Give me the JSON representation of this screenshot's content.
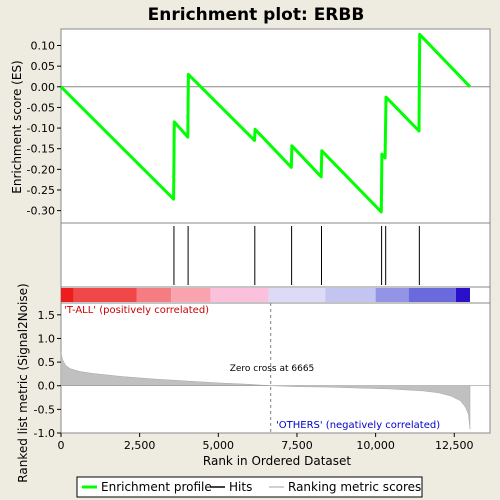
{
  "chart_data": {
    "type": "line",
    "title": "Enrichment plot: ERBB",
    "x_label": "Rank in Ordered Dataset",
    "es_label": "Enrichment score (ES)",
    "metric_label": "Ranked list metric (Signal2Noise)",
    "x_range": [
      0,
      13000
    ],
    "x_ticks": [
      0,
      2500,
      5000,
      7500,
      10000,
      12500
    ],
    "x_tick_labels": [
      "0",
      "2,500",
      "5,000",
      "7,500",
      "10,000",
      "12,500"
    ],
    "es_range": [
      -0.33,
      0.14
    ],
    "es_ticks": [
      0.1,
      0.05,
      0.0,
      -0.05,
      -0.1,
      -0.15,
      -0.2,
      -0.25,
      -0.3
    ],
    "es_tick_labels": [
      "0.10",
      "0.05",
      "0.00",
      "-0.05",
      "-0.10",
      "-0.15",
      "-0.20",
      "-0.25",
      "-0.30"
    ],
    "metric_range": [
      -1.0,
      1.75
    ],
    "metric_ticks": [
      1.5,
      1.0,
      0.5,
      0.0,
      -0.5,
      -1.0
    ],
    "metric_tick_labels": [
      "1.5",
      "1.0",
      "0.5",
      "0.0",
      "-0.5",
      "-1.0"
    ],
    "enrichment_profile": [
      [
        0,
        0.0
      ],
      [
        3580,
        -0.272
      ],
      [
        3600,
        -0.085
      ],
      [
        4030,
        -0.122
      ],
      [
        4050,
        0.03
      ],
      [
        6150,
        -0.13
      ],
      [
        6170,
        -0.103
      ],
      [
        7320,
        -0.195
      ],
      [
        7340,
        -0.143
      ],
      [
        8270,
        -0.218
      ],
      [
        8290,
        -0.155
      ],
      [
        10180,
        -0.303
      ],
      [
        10200,
        -0.163
      ],
      [
        10300,
        -0.172
      ],
      [
        10330,
        -0.025
      ],
      [
        11380,
        -0.107
      ],
      [
        11400,
        0.127
      ],
      [
        13000,
        0.0
      ]
    ],
    "hits": [
      3590,
      4040,
      6160,
      7330,
      8280,
      10190,
      10320,
      11390
    ],
    "heat_segments": [
      {
        "from": 0,
        "to": 400,
        "color": "#ee1c1c"
      },
      {
        "from": 400,
        "to": 2400,
        "color": "#f04848"
      },
      {
        "from": 2400,
        "to": 3500,
        "color": "#f57c80"
      },
      {
        "from": 3500,
        "to": 4750,
        "color": "#f8a3ad"
      },
      {
        "from": 4750,
        "to": 6600,
        "color": "#fbc0dc"
      },
      {
        "from": 6600,
        "to": 8400,
        "color": "#dcdaf6"
      },
      {
        "from": 8400,
        "to": 10000,
        "color": "#c4c4f0"
      },
      {
        "from": 10000,
        "to": 11050,
        "color": "#9494e6"
      },
      {
        "from": 11050,
        "to": 12550,
        "color": "#6a6adc"
      },
      {
        "from": 12550,
        "to": 13000,
        "color": "#2a10c8"
      }
    ],
    "metric_curve": [
      [
        0,
        0.7
      ],
      [
        50,
        0.55
      ],
      [
        150,
        0.43
      ],
      [
        300,
        0.36
      ],
      [
        600,
        0.3
      ],
      [
        1000,
        0.26
      ],
      [
        2000,
        0.19
      ],
      [
        3000,
        0.14
      ],
      [
        4000,
        0.1
      ],
      [
        5000,
        0.06
      ],
      [
        6000,
        0.03
      ],
      [
        6665,
        0.0
      ],
      [
        7500,
        -0.02
      ],
      [
        8500,
        -0.03
      ],
      [
        9500,
        -0.05
      ],
      [
        10500,
        -0.07
      ],
      [
        11000,
        -0.09
      ],
      [
        11500,
        -0.11
      ],
      [
        12000,
        -0.15
      ],
      [
        12400,
        -0.22
      ],
      [
        12700,
        -0.32
      ],
      [
        12850,
        -0.45
      ],
      [
        12950,
        -0.6
      ],
      [
        13000,
        -0.92
      ]
    ],
    "zero_cross_rank": 6665,
    "zero_cross_text": "Zero cross at 6665",
    "positive_label": "'T-ALL' (positively correlated)",
    "negative_label": "'OTHERS' (negatively correlated)",
    "colors": {
      "profile": "#00ff00",
      "hits": "#000000",
      "positive_text": "#cc0000",
      "negative_text": "#0000cc",
      "metric_fill": "#c0c0c0",
      "zero_line": "#808080"
    },
    "legend": {
      "items": [
        {
          "label": "Enrichment profile",
          "icon": "line-green"
        },
        {
          "label": "Hits",
          "icon": "line-black"
        },
        {
          "label": "Ranking metric scores",
          "icon": "line-gray"
        }
      ]
    }
  }
}
